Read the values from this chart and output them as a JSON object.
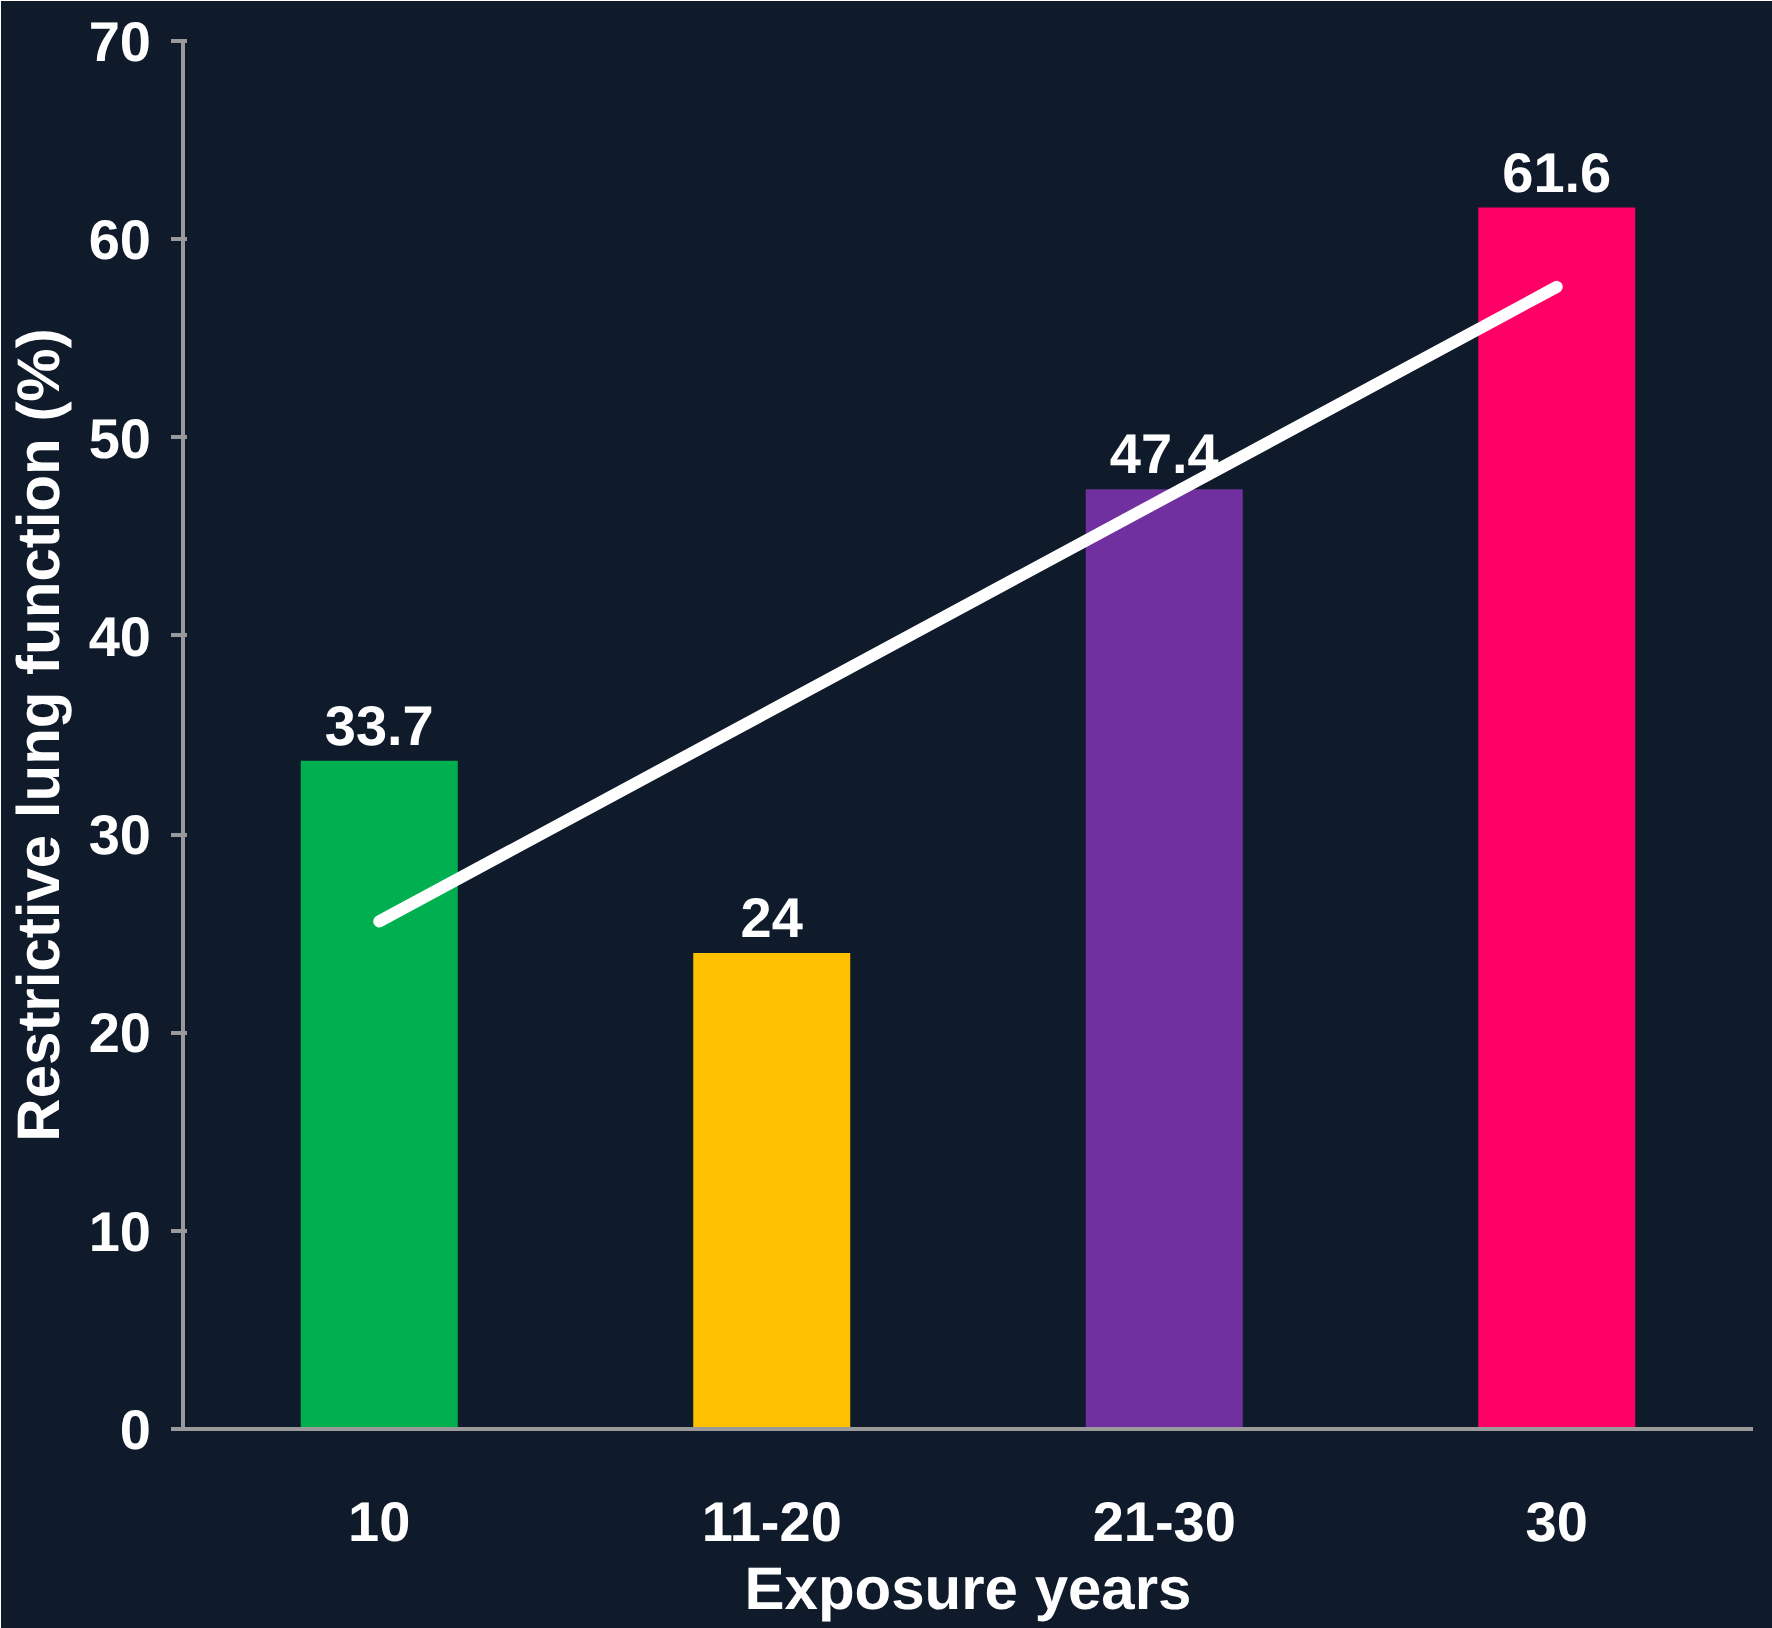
{
  "chart_data": {
    "type": "bar",
    "xlabel": "Exposure years",
    "ylabel": "Restrictive lung function (%)",
    "categories": [
      "10",
      "11-20",
      "21-30",
      "30"
    ],
    "series": [
      {
        "colors": [
          "#00b050",
          "#ffc000",
          "#7030a0",
          "#ff0066"
        ],
        "values": [
          33.7,
          24,
          47.4,
          61.6
        ],
        "data_labels": true
      },
      {
        "type": "line",
        "x": [
          "10",
          "30"
        ],
        "values": [
          25.6,
          57.6
        ],
        "color": "#ffffff"
      }
    ],
    "ylim": [
      0,
      70
    ],
    "yticks": [
      0,
      10,
      20,
      30,
      40,
      50,
      60,
      70
    ],
    "grid": false
  }
}
